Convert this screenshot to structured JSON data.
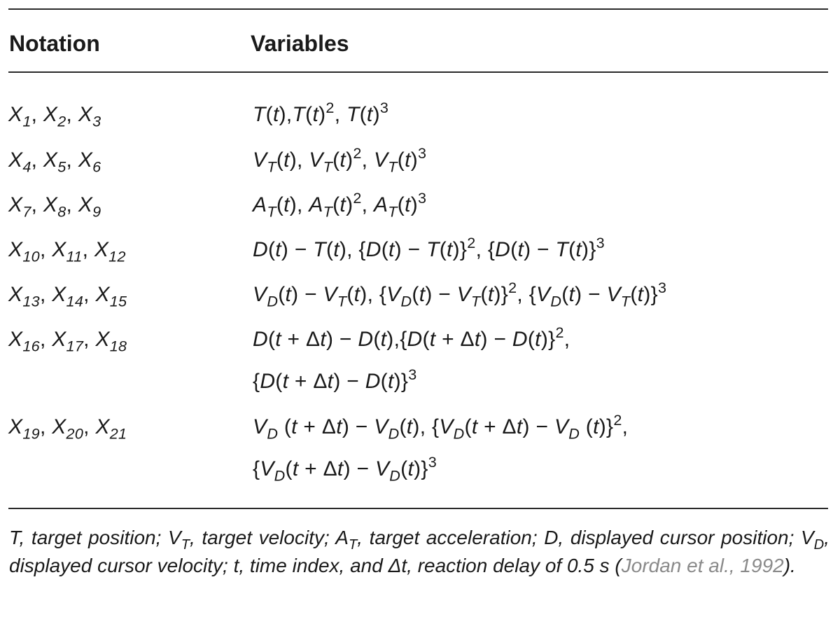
{
  "table": {
    "headers": {
      "notation": "Notation",
      "variables": "Variables"
    },
    "rows": [
      {
        "notation": "X₁, X₂, X₃",
        "variables": [
          "T(t),T(t)², T(t)³"
        ]
      },
      {
        "notation": "X₄, X₅, X₆",
        "variables": [
          "V_T(t), V_T(t)², V_T(t)³"
        ]
      },
      {
        "notation": "X₇, X₈, X₉",
        "variables": [
          "A_T(t), A_T(t)², A_T(t)³"
        ]
      },
      {
        "notation": "X₁₀, X₁₁, X₁₂",
        "variables": [
          "D(t) − T(t), {D(t) − T(t)}², {D(t) − T(t)}³"
        ]
      },
      {
        "notation": "X₁₃, X₁₄, X₁₅",
        "variables": [
          "V_D(t) − V_T(t), {V_D(t) − V_T(t)}², {V_D(t) − V_T(t)}³"
        ]
      },
      {
        "notation": "X₁₆, X₁₇, X₁₈",
        "variables": [
          "D(t + Δt) − D(t),{D(t + Δt) − D(t)}²,",
          "{D(t + Δt) − D(t)}³"
        ]
      },
      {
        "notation": "X₁₉, X₂₀, X₂₁",
        "variables": [
          "V_D (t + Δt) − V_D(t), {V_D(t + Δt) − V_D (t)}²,",
          "{V_D(t + Δt) − V_D(t)}³"
        ]
      }
    ]
  },
  "footnote": {
    "text": "T, target position; V_T, target velocity; A_T, target acceleration; D, displayed cursor position; V_D, displayed cursor velocity; t, time index, and Δt, reaction delay of 0.5 s (",
    "citation": "Jordan et al., 1992",
    "closing": ")."
  }
}
